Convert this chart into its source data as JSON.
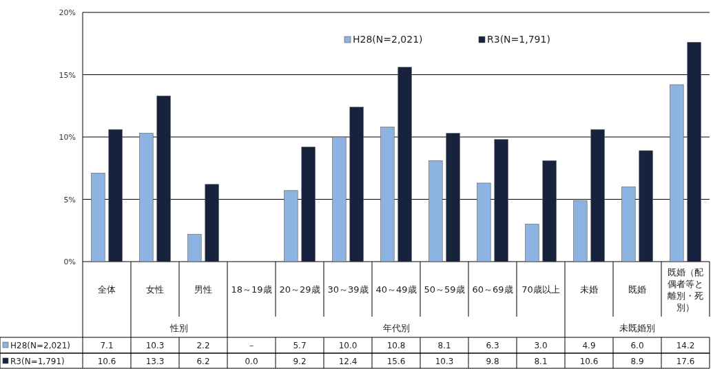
{
  "chart_data": {
    "type": "bar",
    "categories": [
      "全体",
      "女性",
      "男性",
      "18～19歳",
      "20～29歳",
      "30～39歳",
      "40～49歳",
      "50～59歳",
      "60～69歳",
      "70歳以上",
      "未婚",
      "既婚",
      "既婚（配偶者等と離別・死別）"
    ],
    "series": [
      {
        "name": "H28(N=2,021)",
        "color": "#8db3e2",
        "values": [
          7.1,
          10.3,
          2.2,
          null,
          5.7,
          10.0,
          10.8,
          8.1,
          6.3,
          3.0,
          4.9,
          6.0,
          14.2
        ],
        "value_labels": [
          "7.1",
          "10.3",
          "2.2",
          "－",
          "5.7",
          "10.0",
          "10.8",
          "8.1",
          "6.3",
          "3.0",
          "4.9",
          "6.0",
          "14.2"
        ]
      },
      {
        "name": "R3(N=1,791)",
        "color": "#17233d",
        "values": [
          10.6,
          13.3,
          6.2,
          0.0,
          9.2,
          12.4,
          15.6,
          10.3,
          9.8,
          8.1,
          10.6,
          8.9,
          17.6
        ],
        "value_labels": [
          "10.6",
          "13.3",
          "6.2",
          "0.0",
          "9.2",
          "12.4",
          "15.6",
          "10.3",
          "9.8",
          "8.1",
          "10.6",
          "8.9",
          "17.6"
        ]
      }
    ],
    "ylim": [
      0,
      20
    ],
    "yticks": [
      {
        "value": 0,
        "label": "0%"
      },
      {
        "value": 5,
        "label": "5%"
      },
      {
        "value": 10,
        "label": "10%"
      },
      {
        "value": 15,
        "label": "15%"
      },
      {
        "value": 20,
        "label": "20%"
      }
    ],
    "grid": "y",
    "legend": "top",
    "annotations": [
      "性別",
      "年代別",
      "未既婚別"
    ]
  }
}
